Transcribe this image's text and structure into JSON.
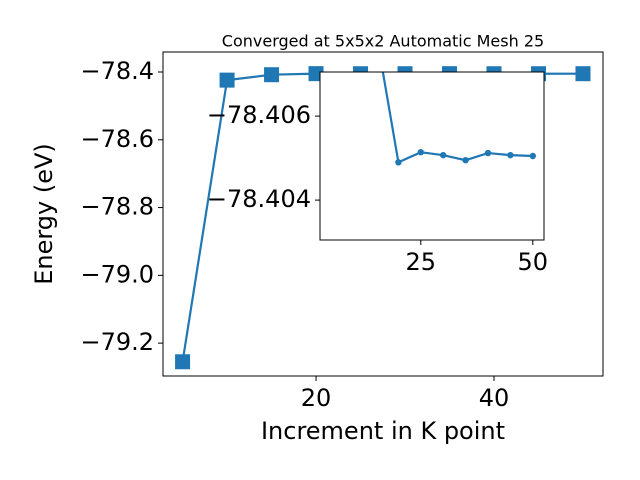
{
  "chart_data": {
    "type": "line",
    "title": "Converged at 5x5x2 Automatic Mesh 25",
    "xlabel": "Increment in K point",
    "ylabel": "Energy (eV)",
    "x": [
      5,
      10,
      15,
      20,
      25,
      30,
      35,
      40,
      45,
      50
    ],
    "values": [
      -79.255,
      -78.424,
      -78.408,
      -78.4049,
      -78.40514,
      -78.40507,
      -78.40495,
      -78.40512,
      -78.40507,
      -78.40505
    ],
    "color": "#1f77b4",
    "xlim": [
      2.8,
      52.25
    ],
    "ylim": [
      -79.297,
      -78.341
    ],
    "xticks": [
      20,
      40
    ],
    "yticks": [
      {
        "value": -79.2,
        "label": "−79.2"
      },
      {
        "value": -79.0,
        "label": "−79.0"
      },
      {
        "value": -78.8,
        "label": "−78.8"
      },
      {
        "value": -78.6,
        "label": "−78.6"
      },
      {
        "value": -78.4,
        "label": "−78.4"
      }
    ],
    "inset": {
      "xlim": [
        2.5,
        52.5
      ],
      "ylim": [
        -78.40305,
        -78.40705
      ],
      "xticks": [
        25,
        50
      ],
      "yticks": [
        {
          "value": -78.406,
          "label": "−78.406"
        },
        {
          "value": -78.404,
          "label": "−78.404"
        }
      ]
    }
  }
}
